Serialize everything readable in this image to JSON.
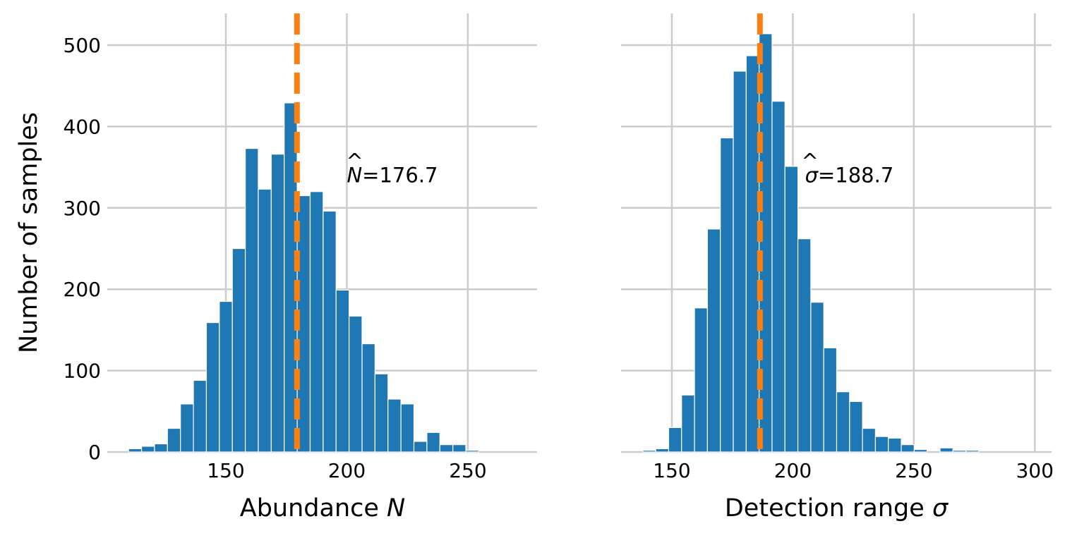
{
  "chart_data": [
    {
      "type": "bar",
      "subtype": "histogram",
      "title": "",
      "xlabel": "Abundance",
      "xlabel_symbol": "N",
      "ylabel": "Number of samples",
      "xlim": [
        101,
        278.6
      ],
      "ylim": [
        0,
        539
      ],
      "xticks": [
        150,
        200,
        250
      ],
      "xtick_labels": [
        "150",
        "200",
        "250"
      ],
      "yticks": [
        0,
        100,
        200,
        300,
        400,
        500
      ],
      "ytick_labels": [
        "0",
        "100",
        "200",
        "300",
        "400",
        "500"
      ],
      "grid": true,
      "bin_start": 109.8,
      "bin_width": 5.36,
      "values": [
        4,
        7,
        10,
        29,
        59,
        88,
        159,
        185,
        250,
        373,
        323,
        366,
        429,
        315,
        320,
        296,
        199,
        167,
        133,
        96,
        65,
        59,
        13,
        24,
        9,
        9,
        2
      ],
      "bar_color": "#1f77b4",
      "vline": {
        "x": 179.4,
        "color": "#ff7f0e",
        "style": "dashed"
      },
      "annotation": {
        "symbol": "N",
        "hat": true,
        "text": "=176.7",
        "x": 200,
        "y": 340
      }
    },
    {
      "type": "bar",
      "subtype": "histogram",
      "title": "",
      "xlabel": "Detection range",
      "xlabel_symbol": "σ",
      "ylabel": "",
      "xlim": [
        129,
        306.9
      ],
      "ylim": [
        0,
        539
      ],
      "xticks": [
        150,
        200,
        250,
        300
      ],
      "xtick_labels": [
        "150",
        "200",
        "250",
        "300"
      ],
      "yticks": [
        0,
        100,
        200,
        300,
        400,
        500
      ],
      "ytick_labels": [],
      "grid": true,
      "bin_start": 138.0,
      "bin_width": 5.34,
      "values": [
        2,
        4,
        30,
        70,
        177,
        274,
        386,
        468,
        487,
        514,
        431,
        351,
        262,
        184,
        128,
        74,
        62,
        29,
        19,
        17,
        9,
        3,
        0,
        5,
        2,
        2
      ],
      "bar_color": "#1f77b4",
      "vline": {
        "x": 186.4,
        "color": "#ff7f0e",
        "style": "dashed"
      },
      "annotation": {
        "symbol": "σ",
        "hat": true,
        "text": "=188.7",
        "x": 205,
        "y": 340
      }
    }
  ]
}
